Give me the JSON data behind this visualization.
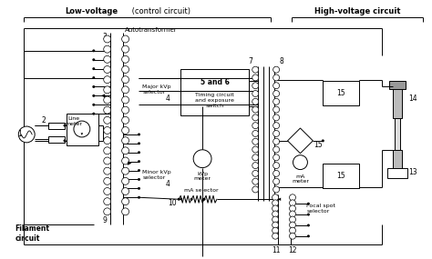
{
  "title_low": "Low-voltage",
  "title_low_suffix": " (control circuit)",
  "title_high": "High-voltage circuit",
  "autotransformer": "Autotransformer",
  "line_meter": "Line\nmeter",
  "major_kvp": "Major kVp\nselector",
  "num_4a": "4",
  "minor_kvp": "Minor kVp\nselector",
  "num_4b": "4",
  "kvp_meter": "kVp\nmeter",
  "timing_title": "5 and 6",
  "timing_body": "Timing circuit\nand exposure\nswitch",
  "ma_selector": "mA selector",
  "ma_meter": "mA\nmeter",
  "focal_spot": "Focal spot\nselector",
  "filament": "Filament\ncircuit",
  "n1": "1",
  "n2": "2",
  "n3": "3",
  "n7": "7",
  "n8": "8",
  "n9": "9",
  "n10": "10",
  "n11": "11",
  "n12": "12",
  "n13": "13",
  "n14": "14",
  "n15a": "15",
  "n15b": "15",
  "n15c": "15"
}
